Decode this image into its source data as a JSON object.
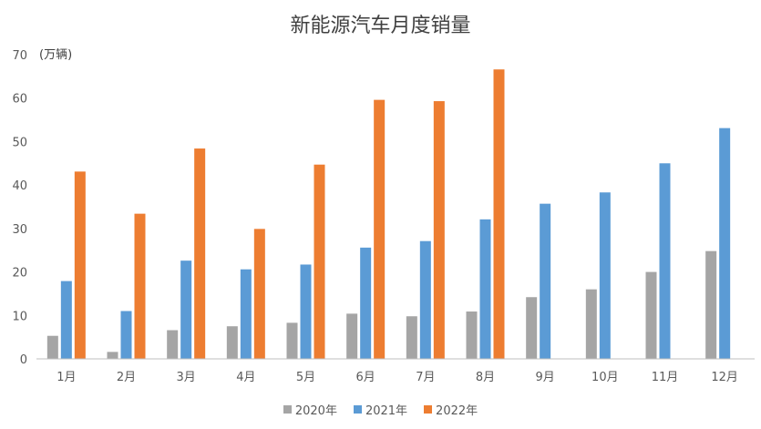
{
  "chart_data": {
    "type": "bar",
    "title": "新能源汽车月度销量",
    "unit_label": "(万辆)",
    "ylim": [
      0,
      70
    ],
    "yticks": [
      "0",
      "10",
      "20",
      "30",
      "40",
      "50",
      "60",
      "70"
    ],
    "categories": [
      "1月",
      "2月",
      "3月",
      "4月",
      "5月",
      "6月",
      "7月",
      "8月",
      "9月",
      "10月",
      "11月",
      "12月"
    ],
    "series": [
      {
        "name": "2020年",
        "color": "#a5a5a5",
        "values": [
          5.3,
          1.6,
          6.6,
          7.5,
          8.3,
          10.4,
          9.8,
          10.9,
          14.2,
          16.0,
          20.0,
          24.8
        ]
      },
      {
        "name": "2021年",
        "color": "#5b9bd5",
        "values": [
          17.9,
          11.0,
          22.6,
          20.6,
          21.7,
          25.6,
          27.1,
          32.1,
          35.7,
          38.3,
          45.0,
          53.1
        ]
      },
      {
        "name": "2022年",
        "color": "#ed7d31",
        "values": [
          43.1,
          33.4,
          48.4,
          29.9,
          44.7,
          59.6,
          59.3,
          66.6,
          null,
          null,
          null,
          null
        ]
      }
    ],
    "grid": false,
    "legend_position": "bottom"
  }
}
